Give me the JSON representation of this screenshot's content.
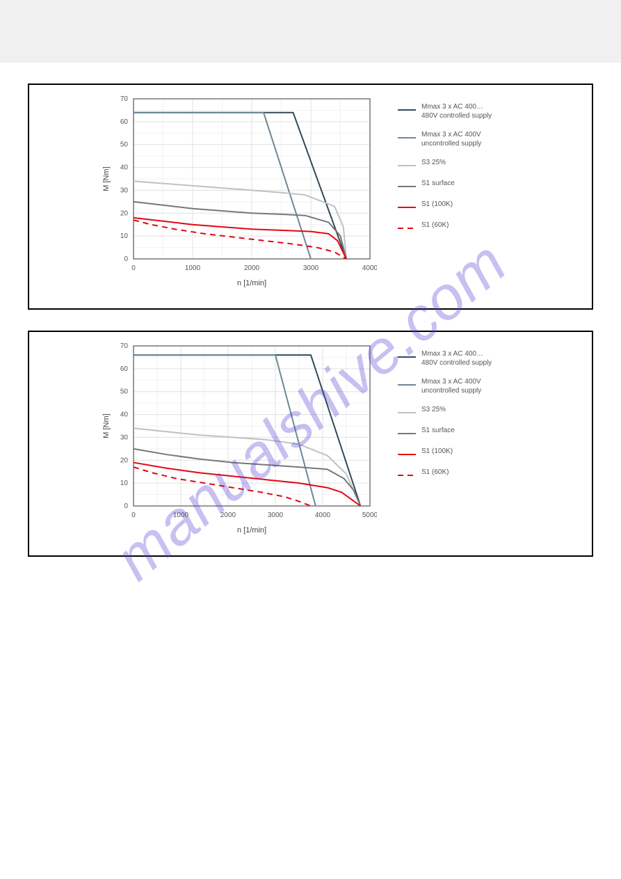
{
  "watermark_text": "manualshive.com",
  "chart1": {
    "type": "line",
    "xlabel": "n [1/min]",
    "ylabel": "M [Nm]",
    "xlim": [
      0,
      4000
    ],
    "ylim": [
      0,
      70
    ],
    "xtick_step": 1000,
    "ytick_step": 10,
    "xtick_labels": [
      "0",
      "1000",
      "2000",
      "3000",
      "4000"
    ],
    "ytick_labels": [
      "0",
      "10",
      "20",
      "30",
      "40",
      "50",
      "60",
      "70"
    ],
    "label_fontsize": 11,
    "tick_fontsize": 10,
    "background_color": "#ffffff",
    "grid_color": "#e0e0e0",
    "grid_minor_color": "#f2f2f2",
    "axis_color": "#555555",
    "legend_fontsize": 10,
    "legend": [
      {
        "label": "Mmax 3 x AC 400…480V controlled supply",
        "color": "#2e4a56",
        "width": 2,
        "dash": "none"
      },
      {
        "label": "Mmax 3 x AC 400V uncontrolled supply",
        "color": "#6a8894",
        "width": 2,
        "dash": "none"
      },
      {
        "label": "S3 25%",
        "color": "#c0c0c0",
        "width": 2,
        "dash": "none"
      },
      {
        "label": "S1 surface",
        "color": "#777777",
        "width": 2,
        "dash": "none"
      },
      {
        "label": "S1 (100K)",
        "color": "#e30613",
        "width": 2,
        "dash": "none"
      },
      {
        "label": "S1 (60K)",
        "color": "#e30613",
        "width": 2,
        "dash": "8,6"
      }
    ],
    "series": {
      "mmax_controlled": {
        "color": "#2e4a56",
        "width": 2,
        "dash": "none",
        "points": [
          [
            0,
            64
          ],
          [
            2700,
            64
          ],
          [
            3600,
            0
          ]
        ]
      },
      "mmax_uncontrolled": {
        "color": "#6a8894",
        "width": 2,
        "dash": "none",
        "points": [
          [
            0,
            64
          ],
          [
            2200,
            64
          ],
          [
            3000,
            0
          ]
        ]
      },
      "s3_25": {
        "color": "#c0c0c0",
        "width": 2,
        "dash": "none",
        "points": [
          [
            0,
            34
          ],
          [
            500,
            33
          ],
          [
            1000,
            32
          ],
          [
            1500,
            31
          ],
          [
            2000,
            30
          ],
          [
            2500,
            29
          ],
          [
            2900,
            28
          ],
          [
            3400,
            23
          ],
          [
            3550,
            14
          ],
          [
            3600,
            0
          ]
        ]
      },
      "s1_surface": {
        "color": "#777777",
        "width": 2,
        "dash": "none",
        "points": [
          [
            0,
            25
          ],
          [
            500,
            23.5
          ],
          [
            1000,
            22
          ],
          [
            1500,
            21
          ],
          [
            2000,
            20
          ],
          [
            2500,
            19.5
          ],
          [
            2900,
            19
          ],
          [
            3300,
            16
          ],
          [
            3500,
            10
          ],
          [
            3600,
            0
          ]
        ]
      },
      "s1_100k": {
        "color": "#e30613",
        "width": 2,
        "dash": "none",
        "points": [
          [
            0,
            18
          ],
          [
            500,
            16.5
          ],
          [
            1000,
            15
          ],
          [
            1500,
            14
          ],
          [
            2000,
            13
          ],
          [
            2500,
            12.5
          ],
          [
            3000,
            12
          ],
          [
            3300,
            11
          ],
          [
            3450,
            8
          ],
          [
            3600,
            0
          ]
        ]
      },
      "s1_60k": {
        "color": "#e30613",
        "width": 2,
        "dash": "8,6",
        "points": [
          [
            0,
            17
          ],
          [
            300,
            15
          ],
          [
            700,
            13
          ],
          [
            1200,
            11
          ],
          [
            1700,
            9.5
          ],
          [
            2200,
            8
          ],
          [
            2700,
            6.5
          ],
          [
            3100,
            5
          ],
          [
            3400,
            3
          ],
          [
            3600,
            0
          ]
        ]
      }
    }
  },
  "chart2": {
    "type": "line",
    "xlabel": "n [1/min]",
    "ylabel": "M [Nm]",
    "xlim": [
      0,
      5000
    ],
    "ylim": [
      0,
      70
    ],
    "xtick_step": 1000,
    "ytick_step": 10,
    "xtick_labels": [
      "0",
      "1000",
      "2000",
      "3000",
      "4000",
      "5000"
    ],
    "ytick_labels": [
      "0",
      "10",
      "20",
      "30",
      "40",
      "50",
      "60",
      "70"
    ],
    "label_fontsize": 11,
    "tick_fontsize": 10,
    "background_color": "#ffffff",
    "grid_color": "#e0e0e0",
    "grid_minor_color": "#f2f2f2",
    "axis_color": "#555555",
    "legend_fontsize": 10,
    "legend": [
      {
        "label": "Mmax 3 x AC 400…480V controlled supply",
        "color": "#2e4a56",
        "width": 2,
        "dash": "none"
      },
      {
        "label": "Mmax 3 x AC 400V uncontrolled supply",
        "color": "#6a8894",
        "width": 2,
        "dash": "none"
      },
      {
        "label": "S3 25%",
        "color": "#c0c0c0",
        "width": 2,
        "dash": "none"
      },
      {
        "label": "S1 surface",
        "color": "#777777",
        "width": 2,
        "dash": "none"
      },
      {
        "label": "S1 (100K)",
        "color": "#e30613",
        "width": 2,
        "dash": "none"
      },
      {
        "label": "S1 (60K)",
        "color": "#e30613",
        "width": 2,
        "dash": "8,6"
      }
    ],
    "series": {
      "mmax_controlled": {
        "color": "#2e4a56",
        "width": 2,
        "dash": "none",
        "points": [
          [
            0,
            66
          ],
          [
            3750,
            66
          ],
          [
            4800,
            0
          ]
        ]
      },
      "mmax_uncontrolled": {
        "color": "#6a8894",
        "width": 2,
        "dash": "none",
        "points": [
          [
            0,
            66
          ],
          [
            3000,
            66
          ],
          [
            3850,
            0
          ]
        ]
      },
      "s3_25": {
        "color": "#c0c0c0",
        "width": 2,
        "dash": "none",
        "points": [
          [
            0,
            34
          ],
          [
            700,
            32.5
          ],
          [
            1400,
            31
          ],
          [
            2100,
            30
          ],
          [
            2800,
            29
          ],
          [
            3500,
            27
          ],
          [
            4100,
            22
          ],
          [
            4500,
            14
          ],
          [
            4800,
            0
          ]
        ]
      },
      "s1_surface": {
        "color": "#777777",
        "width": 2,
        "dash": "none",
        "points": [
          [
            0,
            25
          ],
          [
            700,
            22.5
          ],
          [
            1400,
            20.5
          ],
          [
            2100,
            19
          ],
          [
            2800,
            18
          ],
          [
            3500,
            17
          ],
          [
            4100,
            16
          ],
          [
            4450,
            12
          ],
          [
            4650,
            7
          ],
          [
            4800,
            0
          ]
        ]
      },
      "s1_100k": {
        "color": "#e30613",
        "width": 2,
        "dash": "none",
        "points": [
          [
            0,
            19
          ],
          [
            700,
            16.5
          ],
          [
            1400,
            14.5
          ],
          [
            2100,
            13
          ],
          [
            2800,
            11.5
          ],
          [
            3500,
            10
          ],
          [
            4100,
            8
          ],
          [
            4400,
            6
          ],
          [
            4600,
            3
          ],
          [
            4800,
            0
          ]
        ]
      },
      "s1_60k": {
        "color": "#e30613",
        "width": 2,
        "dash": "8,6",
        "points": [
          [
            0,
            17
          ],
          [
            400,
            14.5
          ],
          [
            900,
            12
          ],
          [
            1500,
            10
          ],
          [
            2100,
            8
          ],
          [
            2700,
            6
          ],
          [
            3200,
            4
          ],
          [
            3500,
            2
          ],
          [
            3750,
            0
          ]
        ]
      }
    }
  }
}
